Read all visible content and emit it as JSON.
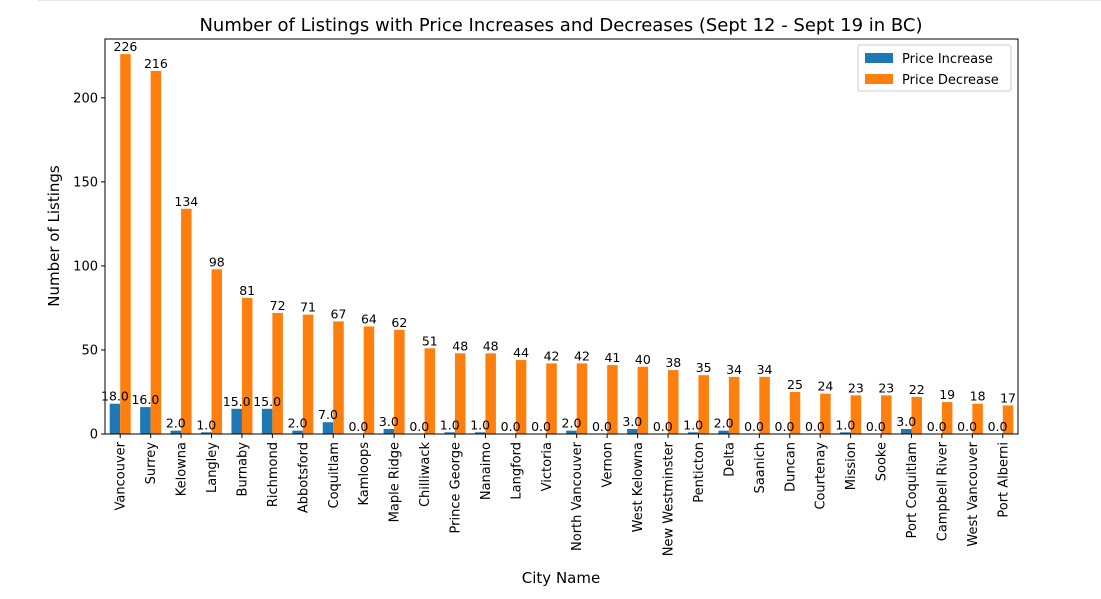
{
  "chart_data": {
    "type": "bar",
    "title": "Number of Listings with Price Increases and Decreases (Sept 12 - Sept 19 in BC)",
    "xlabel": "City Name",
    "ylabel": "Number of Listings",
    "ylim": [
      0,
      235
    ],
    "yticks": [
      0,
      50,
      100,
      150,
      200
    ],
    "legend_position": "top-right",
    "grid": false,
    "categories": [
      "Vancouver",
      "Surrey",
      "Kelowna",
      "Langley",
      "Burnaby",
      "Richmond",
      "Abbotsford",
      "Coquitlam",
      "Kamloops",
      "Maple Ridge",
      "Chilliwack",
      "Prince George",
      "Nanaimo",
      "Langford",
      "Victoria",
      "North Vancouver",
      "Vernon",
      "West Kelowna",
      "New Westminster",
      "Penticton",
      "Delta",
      "Saanich",
      "Duncan",
      "Courtenay",
      "Mission",
      "Sooke",
      "Port Coquitlam",
      "Campbell River",
      "West Vancouver",
      "Port Alberni"
    ],
    "series": [
      {
        "name": "Price Increase",
        "color": "#1f77b4",
        "values": [
          18,
          16,
          2,
          1,
          15,
          15,
          2,
          7,
          0,
          3,
          0,
          1,
          1,
          0,
          0,
          2,
          0,
          3,
          0,
          1,
          2,
          0,
          0,
          0,
          1,
          0,
          3,
          0,
          0,
          0
        ],
        "value_labels": [
          "18.0",
          "16.0",
          "2.0",
          "1.0",
          "15.0",
          "15.0",
          "2.0",
          "7.0",
          "0.0",
          "3.0",
          "0.0",
          "1.0",
          "1.0",
          "0.0",
          "0.0",
          "2.0",
          "0.0",
          "3.0",
          "0.0",
          "1.0",
          "2.0",
          "0.0",
          "0.0",
          "0.0",
          "1.0",
          "0.0",
          "3.0",
          "0.0",
          "0.0",
          "0.0"
        ]
      },
      {
        "name": "Price Decrease",
        "color": "#ff7f0e",
        "values": [
          226,
          216,
          134,
          98,
          81,
          72,
          71,
          67,
          64,
          62,
          51,
          48,
          48,
          44,
          42,
          42,
          41,
          40,
          38,
          35,
          34,
          34,
          25,
          24,
          23,
          23,
          22,
          19,
          18,
          17
        ],
        "value_labels": [
          "226",
          "216",
          "134",
          "98",
          "81",
          "72",
          "71",
          "67",
          "64",
          "62",
          "51",
          "48",
          "48",
          "44",
          "42",
          "42",
          "41",
          "40",
          "38",
          "35",
          "34",
          "34",
          "25",
          "24",
          "23",
          "23",
          "22",
          "19",
          "18",
          "17"
        ]
      }
    ]
  }
}
